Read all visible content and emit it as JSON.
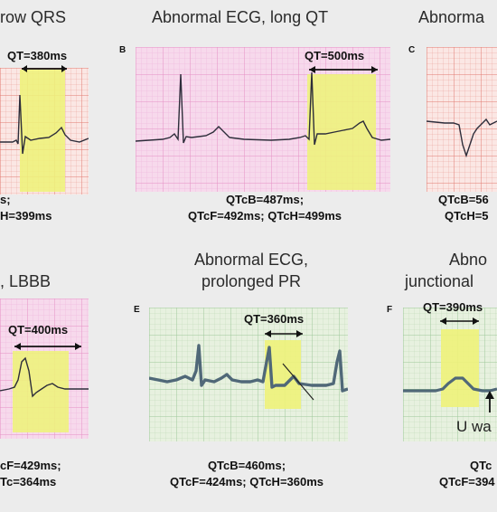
{
  "panels": {
    "a": {
      "title": "row QRS",
      "qt": "QT=380ms",
      "caption_1": "s;",
      "caption_2": "H=399ms"
    },
    "b": {
      "letter": "B",
      "title": "Abnormal ECG, long QT",
      "qt": "QT=500ms",
      "caption_1": "QTcB=487ms;",
      "caption_2": "QTcF=492ms; QTcH=499ms"
    },
    "c": {
      "letter": "C",
      "title": "Abnorma",
      "caption_1": "QTcB=56",
      "caption_2": "QTcH=5"
    },
    "d": {
      "title": ", LBBB",
      "qt": "QT=400ms",
      "caption_1": "cF=429ms;",
      "caption_2": "Tc=364ms"
    },
    "e": {
      "letter": "E",
      "title_1": "Abnormal ECG,",
      "title_2": "prolonged PR",
      "qt": "QT=360ms",
      "caption_1": "QTcB=460ms;",
      "caption_2": "QTcF=424ms; QTcH=360ms"
    },
    "f": {
      "letter": "F",
      "title_1": "Abno",
      "title_2": "junctional",
      "qt": "QT=390ms",
      "annotation": "U wa",
      "caption_1": "QTc",
      "caption_2": "QTcF=394"
    }
  },
  "colors": {
    "pink_grid_bg": "#f7d9ec",
    "pink_grid_line": "#e58fc4",
    "green_grid_bg": "#e7f1df",
    "green_grid_line": "#9cc79a",
    "red_grid_bg": "#fbe7e4",
    "red_grid_line": "#e79b92",
    "highlight": "#eef27a",
    "trace": "#2d2d3a"
  }
}
